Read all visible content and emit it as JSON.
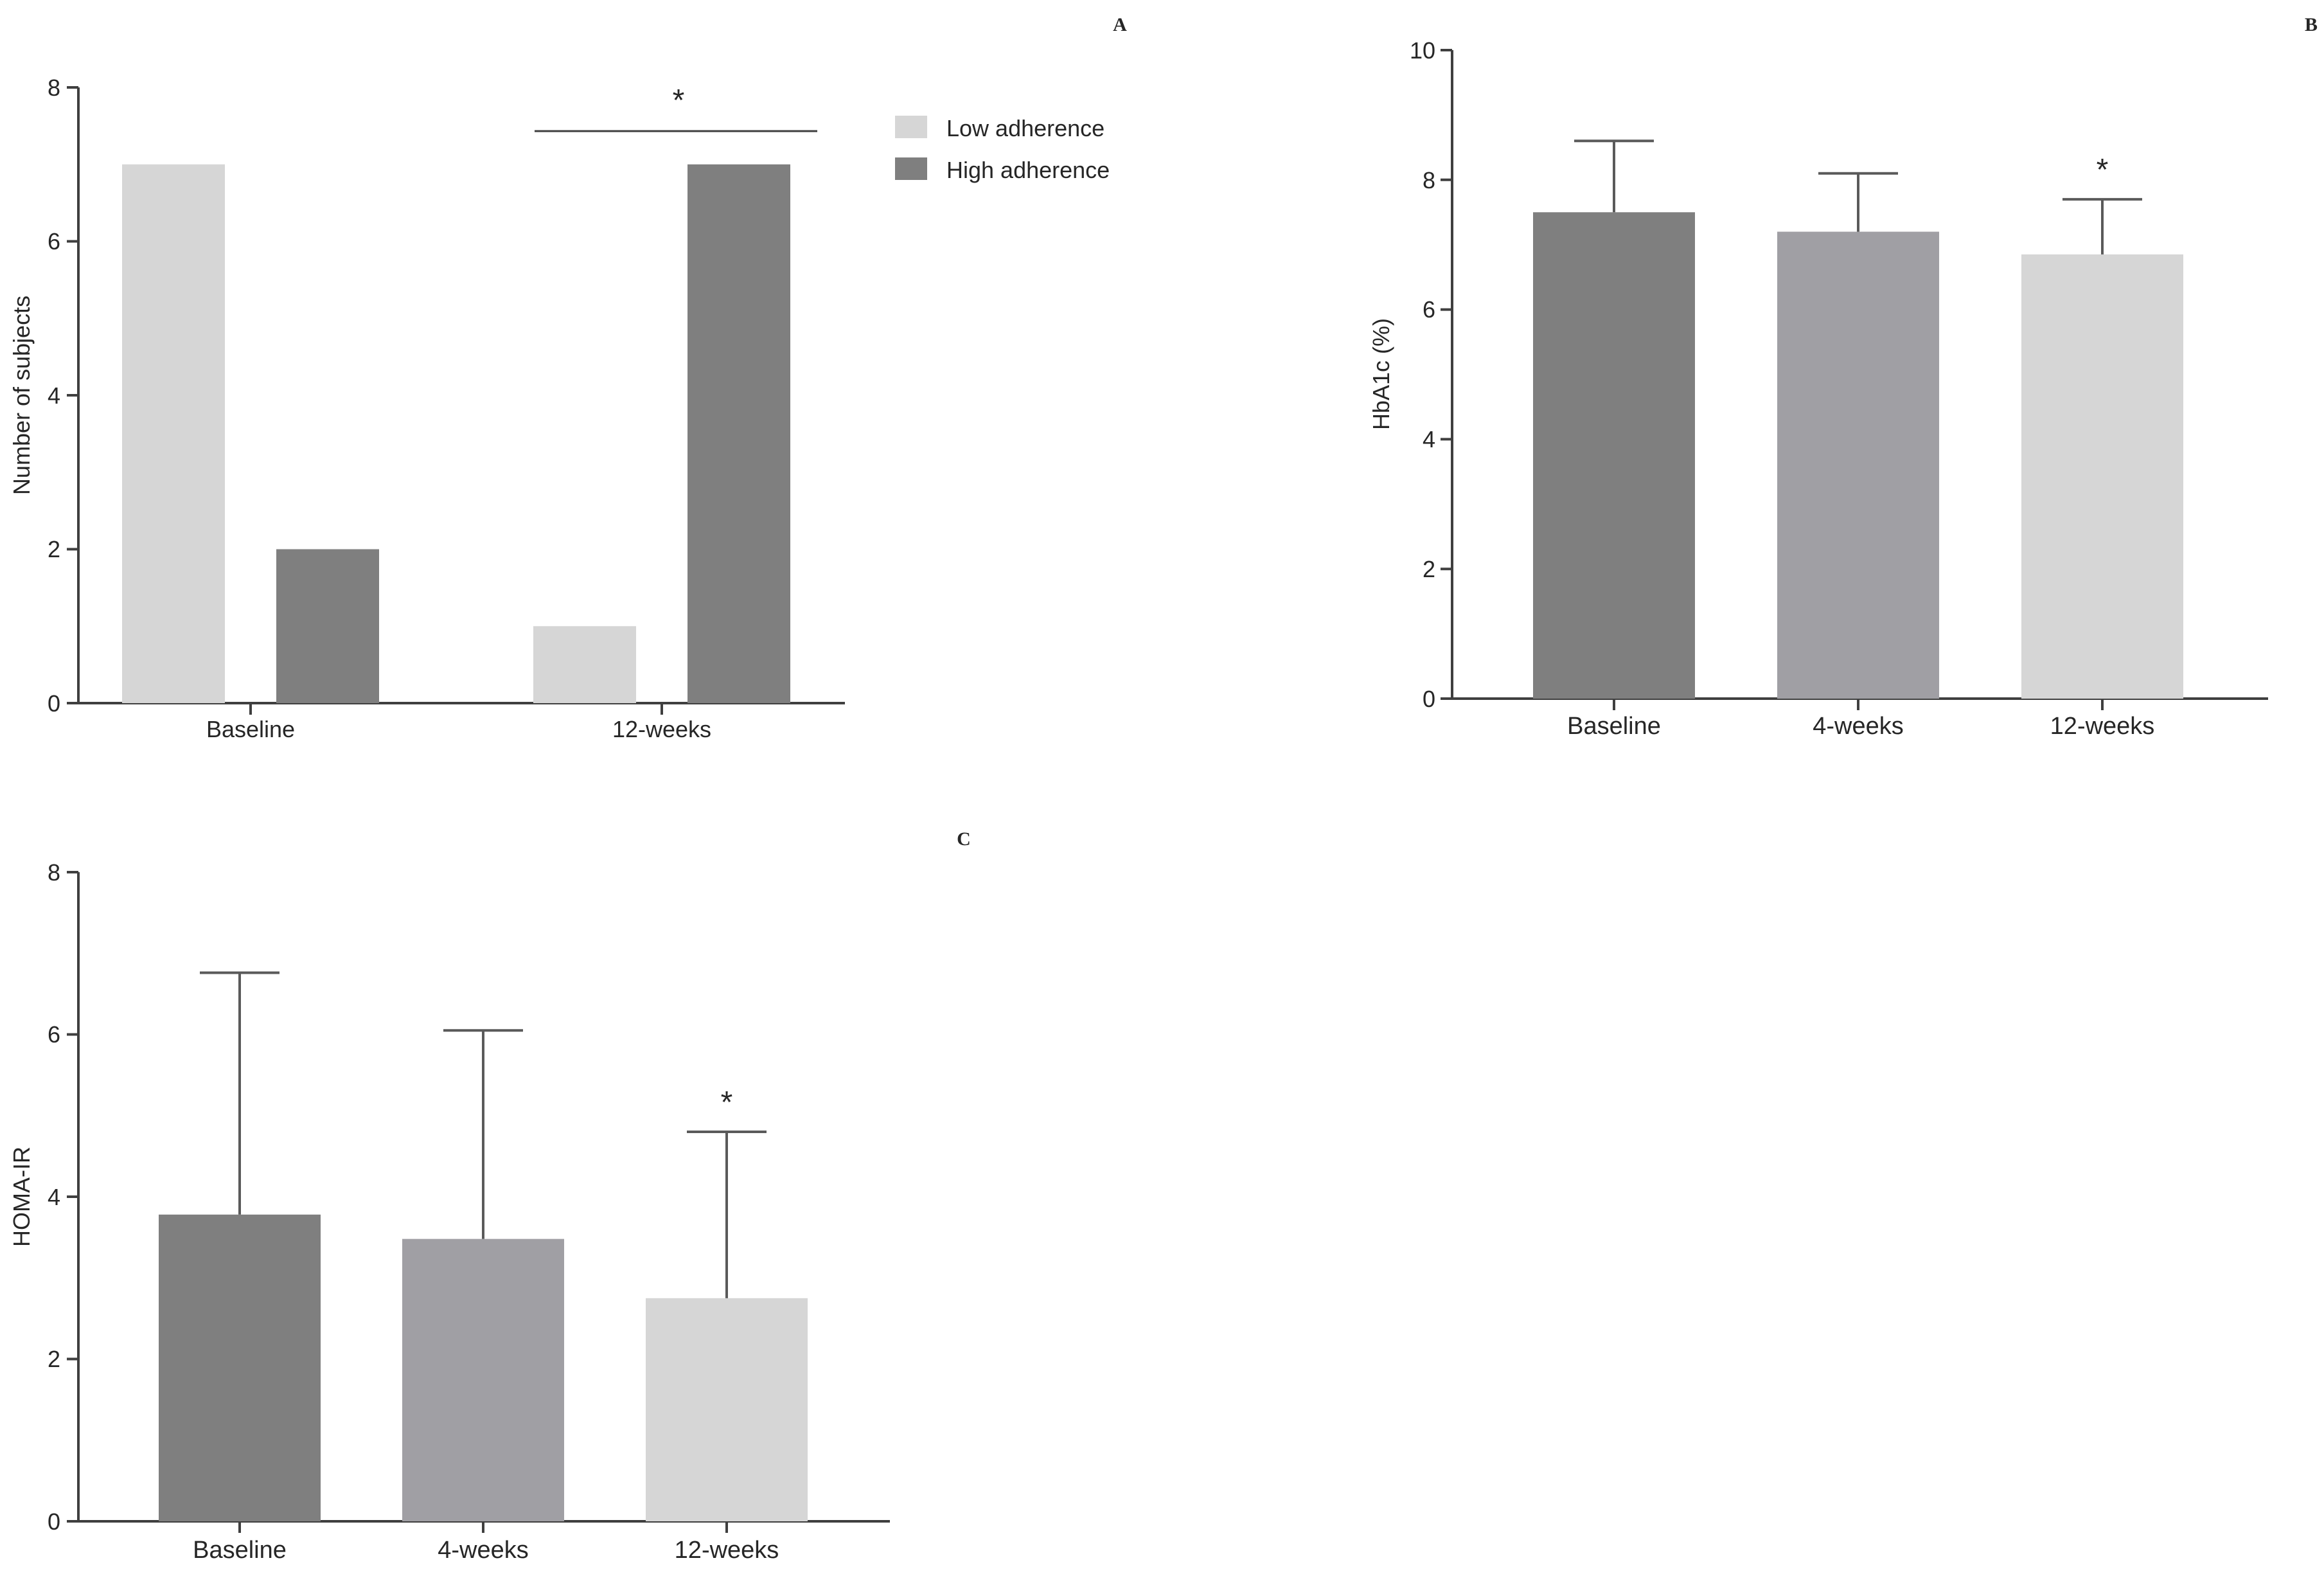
{
  "colors": {
    "axis": "#3f3f3f",
    "text": "#262626",
    "light": "#d6d6d6",
    "mid": "#a09fa4",
    "dark": "#7f7f7f"
  },
  "chart_data": [
    {
      "panel": "A",
      "type": "bar",
      "title": "",
      "xlabel": "",
      "ylabel": "Number of subjects",
      "ylim": [
        0,
        8
      ],
      "yticks": [
        "0",
        "2",
        "4",
        "6",
        "8"
      ],
      "categories": [
        "Baseline",
        "12-weeks"
      ],
      "series": [
        {
          "name": "Low adherence",
          "color": "#d6d6d6",
          "values": [
            7,
            1
          ]
        },
        {
          "name": "High adherence",
          "color": "#7f7f7f",
          "values": [
            2,
            7
          ]
        }
      ],
      "legend_position": "top-right",
      "annotations": [
        {
          "text": "*",
          "category": "12-weeks",
          "type": "bracket"
        }
      ]
    },
    {
      "panel": "B",
      "type": "bar",
      "title": "",
      "xlabel": "",
      "ylabel": "HbA1c (%)",
      "ylim": [
        0,
        10
      ],
      "yticks": [
        "0",
        "2",
        "4",
        "6",
        "8",
        "10"
      ],
      "categories": [
        "Baseline",
        "4-weeks",
        "12-weeks"
      ],
      "values": [
        7.5,
        7.2,
        6.85
      ],
      "errors": [
        1.1,
        0.9,
        0.85
      ],
      "colors": [
        "#7f7f7f",
        "#a09fa4",
        "#d6d6d6"
      ],
      "annotations": [
        {
          "text": "*",
          "category": "12-weeks"
        }
      ]
    },
    {
      "panel": "C",
      "type": "bar",
      "title": "",
      "xlabel": "",
      "ylabel": "HOMA-IR",
      "ylim": [
        0,
        8
      ],
      "yticks": [
        "0",
        "2",
        "4",
        "6",
        "8"
      ],
      "categories": [
        "Baseline",
        "4-weeks",
        "12-weeks"
      ],
      "values": [
        3.78,
        3.48,
        2.75
      ],
      "errors": [
        2.98,
        2.57,
        2.05
      ],
      "colors": [
        "#7f7f7f",
        "#a09fa4",
        "#d6d6d6"
      ],
      "annotations": [
        {
          "text": "*",
          "category": "12-weeks"
        }
      ]
    }
  ]
}
